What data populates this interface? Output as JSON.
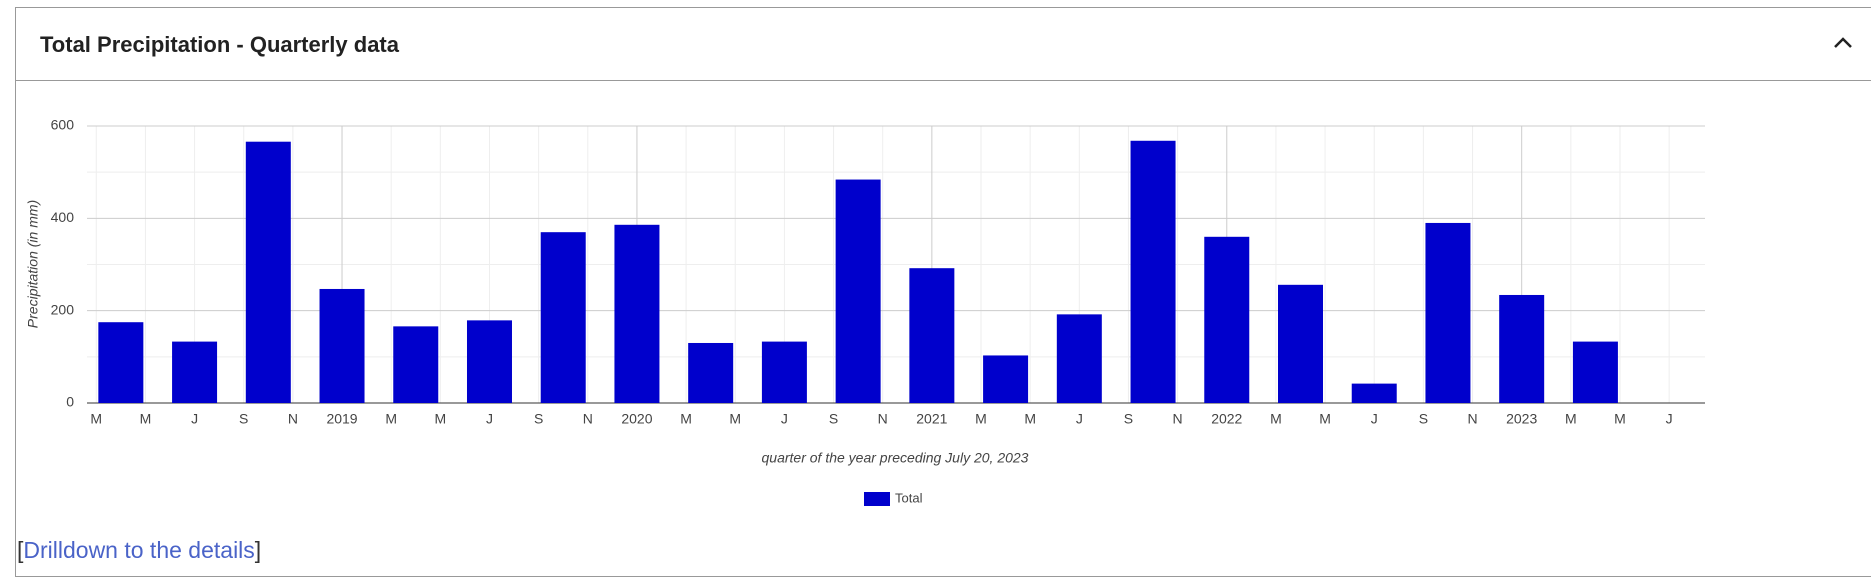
{
  "header": {
    "title": "Total Precipitation - Quarterly data"
  },
  "chart_data": {
    "type": "bar",
    "y_label": "Precipitation (in mm)",
    "x_label": "quarter of the year preceding July 20, 2023",
    "x": [
      "2018-04",
      "2018-07",
      "2018-10",
      "2019-01",
      "2019-04",
      "2019-07",
      "2019-10",
      "2020-01",
      "2020-04",
      "2020-07",
      "2020-10",
      "2021-01",
      "2021-04",
      "2021-07",
      "2021-10",
      "2022-01",
      "2022-04",
      "2022-07",
      "2022-10",
      "2023-01",
      "2023-04"
    ],
    "series": [
      {
        "name": "Total",
        "color": "#0000cc",
        "values": [
          175,
          133,
          566,
          247,
          166,
          179,
          370,
          386,
          130,
          133,
          484,
          292,
          103,
          192,
          568,
          360,
          256,
          42,
          390,
          234,
          133
        ]
      }
    ],
    "xlim": [
      "2018-02-20",
      "2023-08-15"
    ],
    "xticks": [
      {
        "value": "2018-03",
        "label": "M"
      },
      {
        "value": "2018-05",
        "label": "M"
      },
      {
        "value": "2018-07",
        "label": "J"
      },
      {
        "value": "2018-09",
        "label": "S"
      },
      {
        "value": "2018-11",
        "label": "N"
      },
      {
        "value": "2019-01",
        "label": "2019"
      },
      {
        "value": "2019-03",
        "label": "M"
      },
      {
        "value": "2019-05",
        "label": "M"
      },
      {
        "value": "2019-07",
        "label": "J"
      },
      {
        "value": "2019-09",
        "label": "S"
      },
      {
        "value": "2019-11",
        "label": "N"
      },
      {
        "value": "2020-01",
        "label": "2020"
      },
      {
        "value": "2020-03",
        "label": "M"
      },
      {
        "value": "2020-05",
        "label": "M"
      },
      {
        "value": "2020-07",
        "label": "J"
      },
      {
        "value": "2020-09",
        "label": "S"
      },
      {
        "value": "2020-11",
        "label": "N"
      },
      {
        "value": "2021-01",
        "label": "2021"
      },
      {
        "value": "2021-03",
        "label": "M"
      },
      {
        "value": "2021-05",
        "label": "M"
      },
      {
        "value": "2021-07",
        "label": "J"
      },
      {
        "value": "2021-09",
        "label": "S"
      },
      {
        "value": "2021-11",
        "label": "N"
      },
      {
        "value": "2022-01",
        "label": "2022"
      },
      {
        "value": "2022-03",
        "label": "M"
      },
      {
        "value": "2022-05",
        "label": "M"
      },
      {
        "value": "2022-07",
        "label": "J"
      },
      {
        "value": "2022-09",
        "label": "S"
      },
      {
        "value": "2022-11",
        "label": "N"
      },
      {
        "value": "2023-01",
        "label": "2023"
      },
      {
        "value": "2023-03",
        "label": "M"
      },
      {
        "value": "2023-05",
        "label": "M"
      },
      {
        "value": "2023-07",
        "label": "J"
      }
    ],
    "ylim": [
      0,
      600
    ],
    "yticks": [
      0,
      200,
      400,
      600
    ],
    "yminor": [
      100,
      300,
      500
    ],
    "grid": true,
    "legend": "bottom"
  },
  "link": {
    "open": "[",
    "text": "Drilldown to the details",
    "close": "]"
  }
}
